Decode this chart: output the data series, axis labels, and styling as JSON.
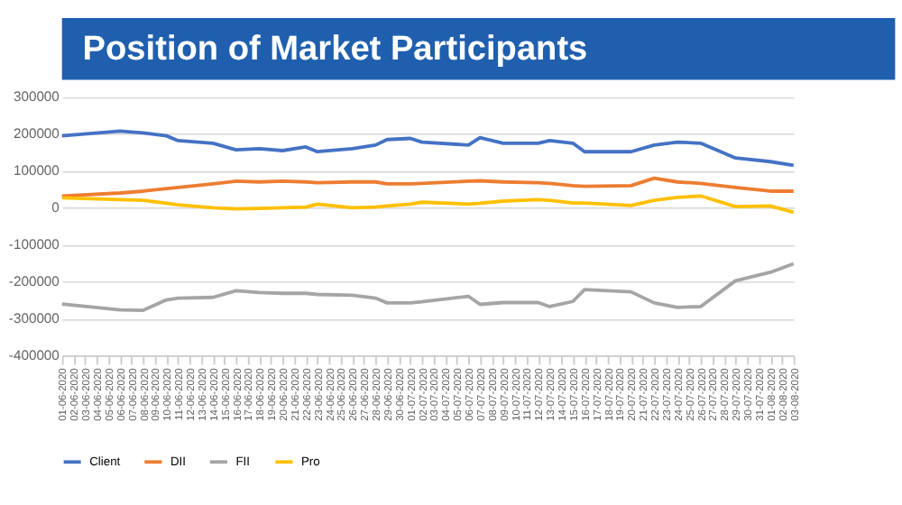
{
  "chart_data": {
    "type": "line",
    "title": "Position of Market Participants",
    "x": [
      "2020-06-01",
      "2020-06-06",
      "2020-06-08",
      "2020-06-10",
      "2020-06-11",
      "2020-06-14",
      "2020-06-16",
      "2020-06-18",
      "2020-06-20",
      "2020-06-22",
      "2020-06-23",
      "2020-06-26",
      "2020-06-28",
      "2020-06-29",
      "2020-07-01",
      "2020-07-02",
      "2020-07-06",
      "2020-07-07",
      "2020-07-09",
      "2020-07-12",
      "2020-07-13",
      "2020-07-15",
      "2020-07-16",
      "2020-07-20",
      "2020-07-22",
      "2020-07-24",
      "2020-07-26",
      "2020-07-29",
      "2020-08-01",
      "2020-08-03"
    ],
    "series": [
      {
        "name": "Client",
        "color": "#4472c4",
        "values": [
          195000,
          208000,
          203000,
          195000,
          182000,
          175000,
          157000,
          160000,
          155000,
          165000,
          152000,
          160000,
          170000,
          185000,
          188000,
          178000,
          170000,
          190000,
          175000,
          175000,
          182000,
          175000,
          152000,
          152000,
          170000,
          178000,
          175000,
          135000,
          125000,
          115000
        ]
      },
      {
        "name": "DII",
        "color": "#ed7d31",
        "values": [
          32000,
          40000,
          45000,
          52000,
          55000,
          65000,
          72000,
          70000,
          72000,
          70000,
          68000,
          70000,
          70000,
          65000,
          65000,
          66000,
          72000,
          73000,
          70000,
          68000,
          66000,
          60000,
          58000,
          60000,
          80000,
          70000,
          66000,
          55000,
          45000,
          45000
        ]
      },
      {
        "name": "FII",
        "color": "#a5a5a5",
        "values": [
          -261000,
          -277000,
          -278000,
          -250000,
          -245000,
          -243000,
          -225000,
          -230000,
          -232000,
          -232000,
          -235000,
          -237000,
          -245000,
          -258000,
          -258000,
          -255000,
          -240000,
          -262000,
          -257000,
          -257000,
          -268000,
          -254000,
          -222000,
          -228000,
          -258000,
          -270000,
          -268000,
          -198000,
          -175000,
          -152000
        ]
      },
      {
        "name": "Pro",
        "color": "#ffc000",
        "values": [
          27000,
          22000,
          20000,
          12000,
          8000,
          0,
          -3000,
          -2000,
          0,
          2000,
          10000,
          0,
          2000,
          5000,
          10000,
          15000,
          10000,
          12000,
          18000,
          22000,
          20000,
          13000,
          13000,
          6000,
          20000,
          28000,
          32000,
          3000,
          5000,
          -12000
        ]
      }
    ],
    "ylim": [
      -400000,
      300000
    ],
    "yticks": [
      -400000,
      -300000,
      -200000,
      -100000,
      0,
      100000,
      200000,
      300000
    ],
    "xlim": [
      "2020-06-01",
      "2020-08-03"
    ],
    "xticks": [
      {
        "value": "2020-06-01",
        "label": "01-06-2020"
      },
      {
        "value": "2020-06-02",
        "label": "02-06-2020"
      },
      {
        "value": "2020-06-03",
        "label": "03-06-2020"
      },
      {
        "value": "2020-06-04",
        "label": "04-06-2020"
      },
      {
        "value": "2020-06-05",
        "label": "05-06-2020"
      },
      {
        "value": "2020-06-06",
        "label": "06-06-2020"
      },
      {
        "value": "2020-06-07",
        "label": "07-06-2020"
      },
      {
        "value": "2020-06-08",
        "label": "08-06-2020"
      },
      {
        "value": "2020-06-09",
        "label": "09-06-2020"
      },
      {
        "value": "2020-06-10",
        "label": "10-06-2020"
      },
      {
        "value": "2020-06-11",
        "label": "11-06-2020"
      },
      {
        "value": "2020-06-12",
        "label": "12-06-2020"
      },
      {
        "value": "2020-06-13",
        "label": "13-06-2020"
      },
      {
        "value": "2020-06-14",
        "label": "14-06-2020"
      },
      {
        "value": "2020-06-15",
        "label": "15-06-2020"
      },
      {
        "value": "2020-06-16",
        "label": "16-06-2020"
      },
      {
        "value": "2020-06-17",
        "label": "17-06-2020"
      },
      {
        "value": "2020-06-18",
        "label": "18-06-2020"
      },
      {
        "value": "2020-06-19",
        "label": "19-06-2020"
      },
      {
        "value": "2020-06-20",
        "label": "20-06-2020"
      },
      {
        "value": "2020-06-21",
        "label": "21-06-2020"
      },
      {
        "value": "2020-06-22",
        "label": "22-06-2020"
      },
      {
        "value": "2020-06-23",
        "label": "23-06-2020"
      },
      {
        "value": "2020-06-24",
        "label": "24-06-2020"
      },
      {
        "value": "2020-06-25",
        "label": "25-06-2020"
      },
      {
        "value": "2020-06-26",
        "label": "26-06-2020"
      },
      {
        "value": "2020-06-27",
        "label": "27-06-2020"
      },
      {
        "value": "2020-06-28",
        "label": "28-06-2020"
      },
      {
        "value": "2020-06-29",
        "label": "29-06-2020"
      },
      {
        "value": "2020-06-30",
        "label": "30-06-2020"
      },
      {
        "value": "2020-07-01",
        "label": "01-07-2020"
      },
      {
        "value": "2020-07-02",
        "label": "02-07-2020"
      },
      {
        "value": "2020-07-03",
        "label": "03-07-2020"
      },
      {
        "value": "2020-07-04",
        "label": "04-07-2020"
      },
      {
        "value": "2020-07-05",
        "label": "05-07-2020"
      },
      {
        "value": "2020-07-06",
        "label": "06-07-2020"
      },
      {
        "value": "2020-07-07",
        "label": "07-07-2020"
      },
      {
        "value": "2020-07-08",
        "label": "08-07-2020"
      },
      {
        "value": "2020-07-09",
        "label": "09-07-2020"
      },
      {
        "value": "2020-07-10",
        "label": "10-07-2020"
      },
      {
        "value": "2020-07-11",
        "label": "11-07-2020"
      },
      {
        "value": "2020-07-12",
        "label": "12-07-2020"
      },
      {
        "value": "2020-07-13",
        "label": "13-07-2020"
      },
      {
        "value": "2020-07-14",
        "label": "14-07-2020"
      },
      {
        "value": "2020-07-15",
        "label": "15-07-2020"
      },
      {
        "value": "2020-07-16",
        "label": "16-07-2020"
      },
      {
        "value": "2020-07-17",
        "label": "17-07-2020"
      },
      {
        "value": "2020-07-18",
        "label": "18-07-2020"
      },
      {
        "value": "2020-07-19",
        "label": "19-07-2020"
      },
      {
        "value": "2020-07-20",
        "label": "20-07-2020"
      },
      {
        "value": "2020-07-21",
        "label": "21-07-2020"
      },
      {
        "value": "2020-07-22",
        "label": "22-07-2020"
      },
      {
        "value": "2020-07-23",
        "label": "23-07-2020"
      },
      {
        "value": "2020-07-24",
        "label": "24-07-2020"
      },
      {
        "value": "2020-07-25",
        "label": "25-07-2020"
      },
      {
        "value": "2020-07-26",
        "label": "26-07-2020"
      },
      {
        "value": "2020-07-27",
        "label": "27-07-2020"
      },
      {
        "value": "2020-07-28",
        "label": "28-07-2020"
      },
      {
        "value": "2020-07-29",
        "label": "29-07-2020"
      },
      {
        "value": "2020-07-30",
        "label": "30-07-2020"
      },
      {
        "value": "2020-07-31",
        "label": "31-07-2020"
      },
      {
        "value": "2020-08-01",
        "label": "01-08-2020"
      },
      {
        "value": "2020-08-02",
        "label": "02-08-2020"
      },
      {
        "value": "2020-08-03",
        "label": "03-08-2020"
      }
    ],
    "grid": "y",
    "legend": "bottom"
  }
}
